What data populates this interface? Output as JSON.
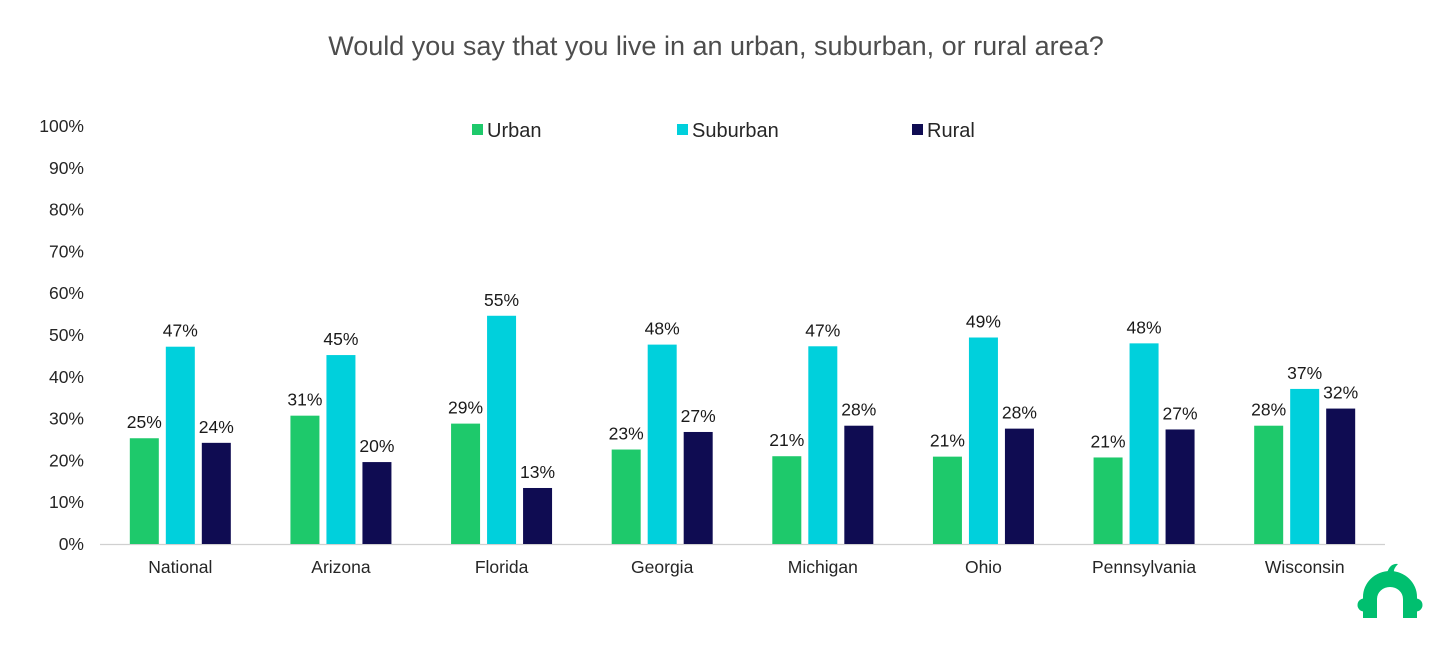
{
  "chart_data": {
    "type": "bar",
    "title": "Would you say that you live in an urban, suburban, or rural area?",
    "xlabel": "",
    "ylabel": "",
    "ylim": [
      0,
      100
    ],
    "y_ticks": [
      0,
      10,
      20,
      30,
      40,
      50,
      60,
      70,
      80,
      90,
      100
    ],
    "y_tick_format": "{v}%",
    "grid": false,
    "legend_position": "top-center",
    "categories": [
      "National",
      "Arizona",
      "Florida",
      "Georgia",
      "Michigan",
      "Ohio",
      "Pennsylvania",
      "Wisconsin"
    ],
    "series": [
      {
        "name": "Urban",
        "color": "#1ec96b",
        "values": [
          25.3,
          30.7,
          28.8,
          22.6,
          21.0,
          20.9,
          20.7,
          28.3
        ],
        "labels": [
          "25%",
          "31%",
          "29%",
          "23%",
          "21%",
          "21%",
          "21%",
          "28%"
        ]
      },
      {
        "name": "Suburban",
        "color": "#00d0dc",
        "values": [
          47.2,
          45.2,
          54.6,
          47.7,
          47.3,
          49.4,
          48.0,
          37.1
        ],
        "labels": [
          "47%",
          "45%",
          "55%",
          "48%",
          "47%",
          "49%",
          "48%",
          "37%"
        ]
      },
      {
        "name": "Rural",
        "color": "#0f0c52",
        "values": [
          24.2,
          19.6,
          13.4,
          26.8,
          28.3,
          27.6,
          27.4,
          32.4
        ],
        "labels": [
          "24%",
          "20%",
          "13%",
          "27%",
          "28%",
          "28%",
          "27%",
          "32%"
        ]
      }
    ]
  },
  "logo": {
    "icon": "surveymonkey-logo-icon",
    "color": "#00bf6f"
  }
}
